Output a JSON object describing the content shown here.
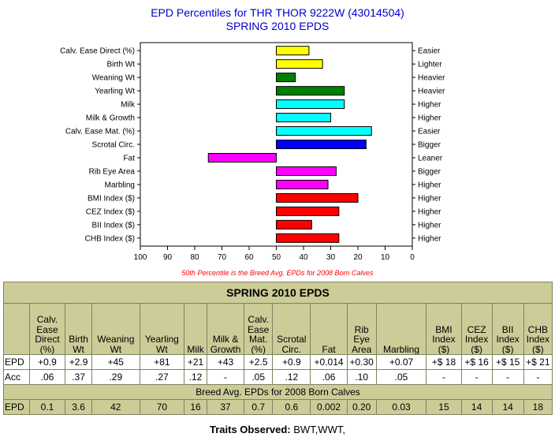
{
  "chart_data": {
    "type": "bar",
    "orientation": "horizontal",
    "title": "EPD Percentiles for THR THOR 9222W (43014504)",
    "subtitle": "SPRING 2010 EPDS",
    "categories": [
      "Calv. Ease Direct (%)",
      "Birth Wt",
      "Weaning Wt",
      "Yearling Wt",
      "Milk",
      "Milk & Growth",
      "Calv. Ease Mat. (%)",
      "Scrotal Circ.",
      "Fat",
      "Rib Eye Area",
      "Marbling",
      "BMI Index ($)",
      "CEZ Index ($)",
      "BII Index ($)",
      "CHB Index ($)"
    ],
    "directions": [
      "Easier",
      "Lighter",
      "Heavier",
      "Heavier",
      "Higher",
      "Higher",
      "Easier",
      "Bigger",
      "Leaner",
      "Bigger",
      "Higher",
      "Higher",
      "Higher",
      "Higher",
      "Higher"
    ],
    "values": [
      38,
      33,
      43,
      25,
      25,
      30,
      15,
      17,
      75,
      28,
      31,
      20,
      27,
      37,
      27
    ],
    "baseline": 50,
    "colors": [
      "#ffff00",
      "#ffff00",
      "#008000",
      "#008000",
      "#00ffff",
      "#00ffff",
      "#00ffff",
      "#0000ff",
      "#ff00ff",
      "#ff00ff",
      "#ff00ff",
      "#ff0000",
      "#ff0000",
      "#ff0000",
      "#ff0000"
    ],
    "xlim": [
      100,
      0
    ],
    "xticks": [
      100,
      90,
      80,
      70,
      60,
      50,
      40,
      30,
      20,
      10,
      0
    ],
    "note": "50th Percentile is the Breed Avg. EPDs for 2008 Born Calves",
    "grid": false
  },
  "table": {
    "title": "SPRING 2010 EPDS",
    "headers": [
      "Calv. Ease Direct (%)",
      "Birth Wt",
      "Weaning Wt",
      "Yearling Wt",
      "Milk",
      "Milk & Growth",
      "Calv. Ease Mat. (%)",
      "Scrotal Circ.",
      "Fat",
      "Rib Eye Area",
      "Marbling",
      "BMI Index ($)",
      "CEZ Index ($)",
      "BII Index ($)",
      "CHB Index ($)"
    ],
    "epd_label": "EPD",
    "epd": [
      "+0.9",
      "+2.9",
      "+45",
      "+81",
      "+21",
      "+43",
      "+2.5",
      "+0.9",
      "+0.014",
      "+0.30",
      "+0.07",
      "+$ 18",
      "+$ 16",
      "+$ 15",
      "+$ 21"
    ],
    "acc_label": "Acc",
    "acc": [
      ".06",
      ".37",
      ".29",
      ".27",
      ".12",
      "-",
      ".05",
      ".12",
      ".06",
      ".10",
      ".05",
      "-",
      "-",
      "-",
      "-"
    ],
    "breed_avg_title": "Breed Avg. EPDs for 2008 Born Calves",
    "avg_label": "EPD",
    "avg": [
      "0.1",
      "3.6",
      "42",
      "70",
      "16",
      "37",
      "0.7",
      "0.6",
      "0.002",
      "0.20",
      "0.03",
      "15",
      "14",
      "14",
      "18"
    ]
  },
  "traits_observed": {
    "label": "Traits Observed:",
    "value": "BWT,WWT,"
  }
}
